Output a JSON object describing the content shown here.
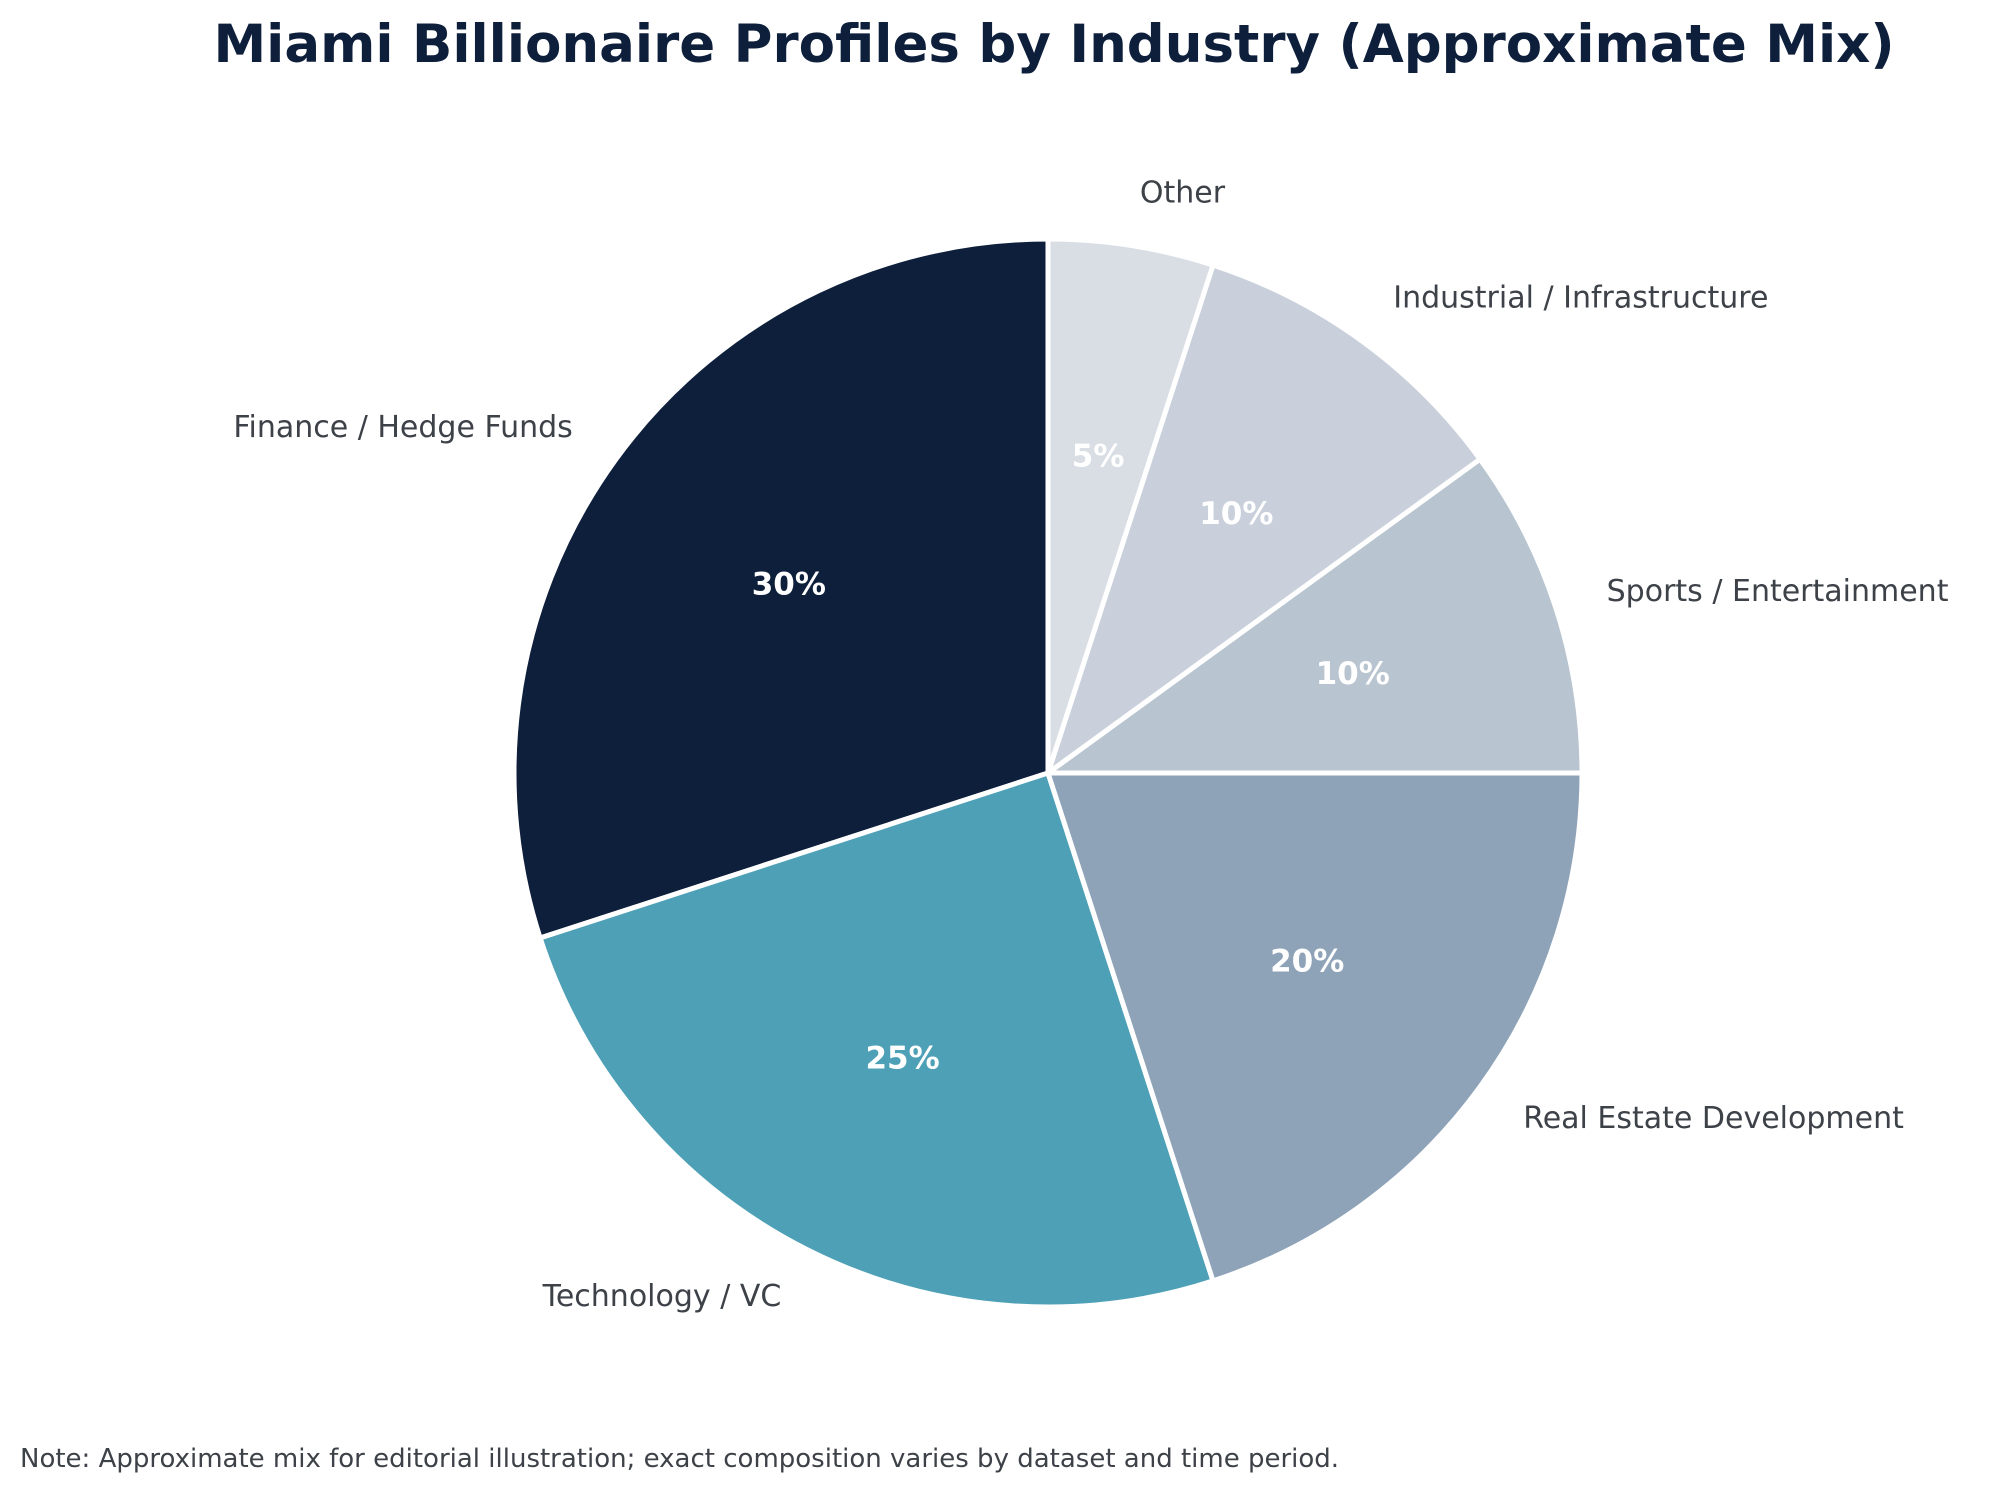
{
  "chart_data": {
    "type": "pie",
    "title": "Miami Billionaire Profiles by Industry (Approximate Mix)",
    "start_angle_deg": 90,
    "direction": "counterclockwise",
    "slices": [
      {
        "label": "Finance / Hedge Funds",
        "value": 30,
        "display": "30%",
        "color": "#0e1f3b"
      },
      {
        "label": "Technology / VC",
        "value": 25,
        "display": "25%",
        "color": "#4da0b6"
      },
      {
        "label": "Real Estate Development",
        "value": 20,
        "display": "20%",
        "color": "#8fa3b8"
      },
      {
        "label": "Sports / Entertainment",
        "value": 10,
        "display": "10%",
        "color": "#b8c4cf"
      },
      {
        "label": "Industrial / Infrastructure",
        "value": 10,
        "display": "10%",
        "color": "#c9d0db"
      },
      {
        "label": "Other",
        "value": 5,
        "display": "5%",
        "color": "#d9dde4"
      }
    ],
    "annotation": "Note: Approximate mix for editorial illustration; exact composition varies by dataset and time period."
  }
}
